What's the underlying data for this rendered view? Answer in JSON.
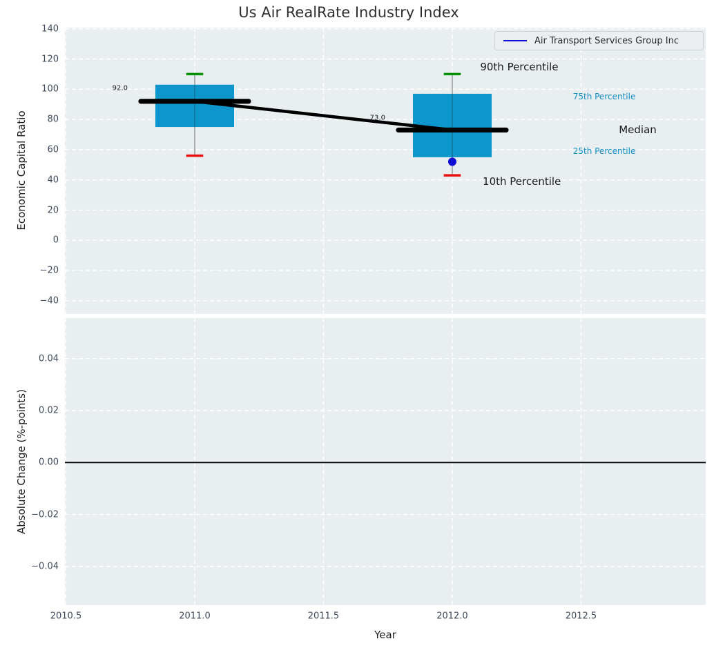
{
  "title": "Us Air RealRate Industry Index",
  "legend": {
    "label": "Air Transport Services Group Inc",
    "line_color": "#0d0dd8",
    "position": "upper right"
  },
  "colors": {
    "box_fill": "#0c96cc",
    "cap_high": "#089008",
    "cap_low": "#e81010",
    "median_line": "#000000",
    "company_marker": "#0d0dd8",
    "plot_background": "#e9eef0",
    "gridline": "#ffffff",
    "tick_text": "#3f4b5b",
    "accent_label": "#128fc4",
    "zero_line": "#000000",
    "whisker": "#8a8a8a"
  },
  "chart_data": [
    {
      "type": "boxplot-timeseries",
      "title": "Us Air RealRate Industry Index",
      "ylabel": "Economic Capital Ratio",
      "xlabel": "",
      "xlim": [
        2010.496,
        2012.984
      ],
      "ylim": [
        -48.72,
        140.78
      ],
      "grid": true,
      "xticks": {
        "values": [
          2010.5,
          2011.0,
          2011.5,
          2012.0,
          2012.5
        ],
        "labels_shown": false
      },
      "yticks": {
        "values": [
          140,
          120,
          100,
          80,
          60,
          40,
          20,
          0,
          -20,
          -40
        ],
        "labels": [
          "140",
          "120",
          "100",
          "80",
          "60",
          "40",
          "20",
          "0",
          "−20",
          "−40"
        ]
      },
      "boxes": [
        {
          "year": 2011,
          "p90": 110,
          "p75": 103,
          "median": 92,
          "p25": 75,
          "p10": 56,
          "median_label": "92.0"
        },
        {
          "year": 2012,
          "p90": 110,
          "p75": 97,
          "median": 73,
          "p25": 55,
          "p10": 43,
          "median_label": "73.0"
        }
      ],
      "series": [
        {
          "name": "Air Transport Services Group Inc",
          "type": "scatter",
          "points": [
            {
              "x": 2012,
              "y": 52
            }
          ]
        }
      ],
      "annotations": [
        {
          "name": "median-value-2011",
          "text": "92.0",
          "x": 2010.71,
          "y": 100.5,
          "color": "#1a1a1a",
          "size": 10
        },
        {
          "name": "median-value-2012",
          "text": "73.0",
          "x": 2011.71,
          "y": 81.0,
          "color": "#1a1a1a",
          "size": 10
        },
        {
          "name": "label-90th-percentile",
          "text": "90th Percentile",
          "x": 2012.26,
          "y": 114.7,
          "color": "#1a1a1a",
          "size": 15
        },
        {
          "name": "label-75th-percentile",
          "text": "75th Percentile",
          "x": 2012.59,
          "y": 95.1,
          "color": "#128fc4",
          "size": 12
        },
        {
          "name": "label-median",
          "text": "Median",
          "x": 2012.72,
          "y": 73.2,
          "color": "#1a1a1a",
          "size": 15
        },
        {
          "name": "label-25th-percentile",
          "text": "25th Percentile",
          "x": 2012.59,
          "y": 59.2,
          "color": "#128fc4",
          "size": 12
        },
        {
          "name": "label-10th-percentile",
          "text": "10th Percentile",
          "x": 2012.27,
          "y": 38.8,
          "color": "#1a1a1a",
          "size": 15
        }
      ]
    },
    {
      "type": "line",
      "ylabel": "Absolute Change (%-points)",
      "xlabel": "Year",
      "xlim": [
        2010.496,
        2012.984
      ],
      "ylim": [
        -0.0549,
        0.0556
      ],
      "grid": true,
      "zero_line": 0.0,
      "xticks": {
        "values": [
          2010.5,
          2011.0,
          2011.5,
          2012.0,
          2012.5
        ],
        "labels": [
          "2010.5",
          "2011.0",
          "2011.5",
          "2012.0",
          "2012.5"
        ]
      },
      "yticks": {
        "values": [
          0.04,
          0.02,
          0.0,
          -0.02,
          -0.04
        ],
        "labels": [
          "0.04",
          "0.02",
          "0.00",
          "−0.02",
          "−0.04"
        ]
      },
      "series": []
    }
  ]
}
